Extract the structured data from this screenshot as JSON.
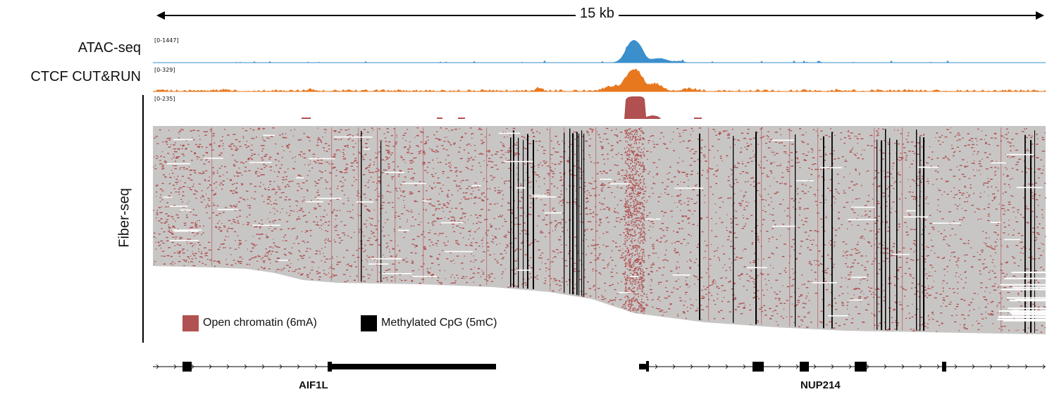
{
  "scale_bar": {
    "label": "15 kb"
  },
  "tracks": [
    {
      "name": "ATAC-seq",
      "range": "[0-1447]",
      "color": "#3b8fcc"
    },
    {
      "name": "CTCF CUT&RUN",
      "range": "[0-329]",
      "color": "#e8781e"
    },
    {
      "name": "Fiber-seq",
      "range": "[0-235]",
      "color": "#b05050"
    }
  ],
  "legend": [
    {
      "label": "Open chromatin (6mA)",
      "color": "#b05252"
    },
    {
      "label": "Methylated CpG (5mC)",
      "color": "#000000"
    }
  ],
  "genes": [
    {
      "name": "AIF1L"
    },
    {
      "name": "NUP214"
    }
  ],
  "colors": {
    "fiber_background": "#c8c6c5",
    "line": "#000000"
  }
}
